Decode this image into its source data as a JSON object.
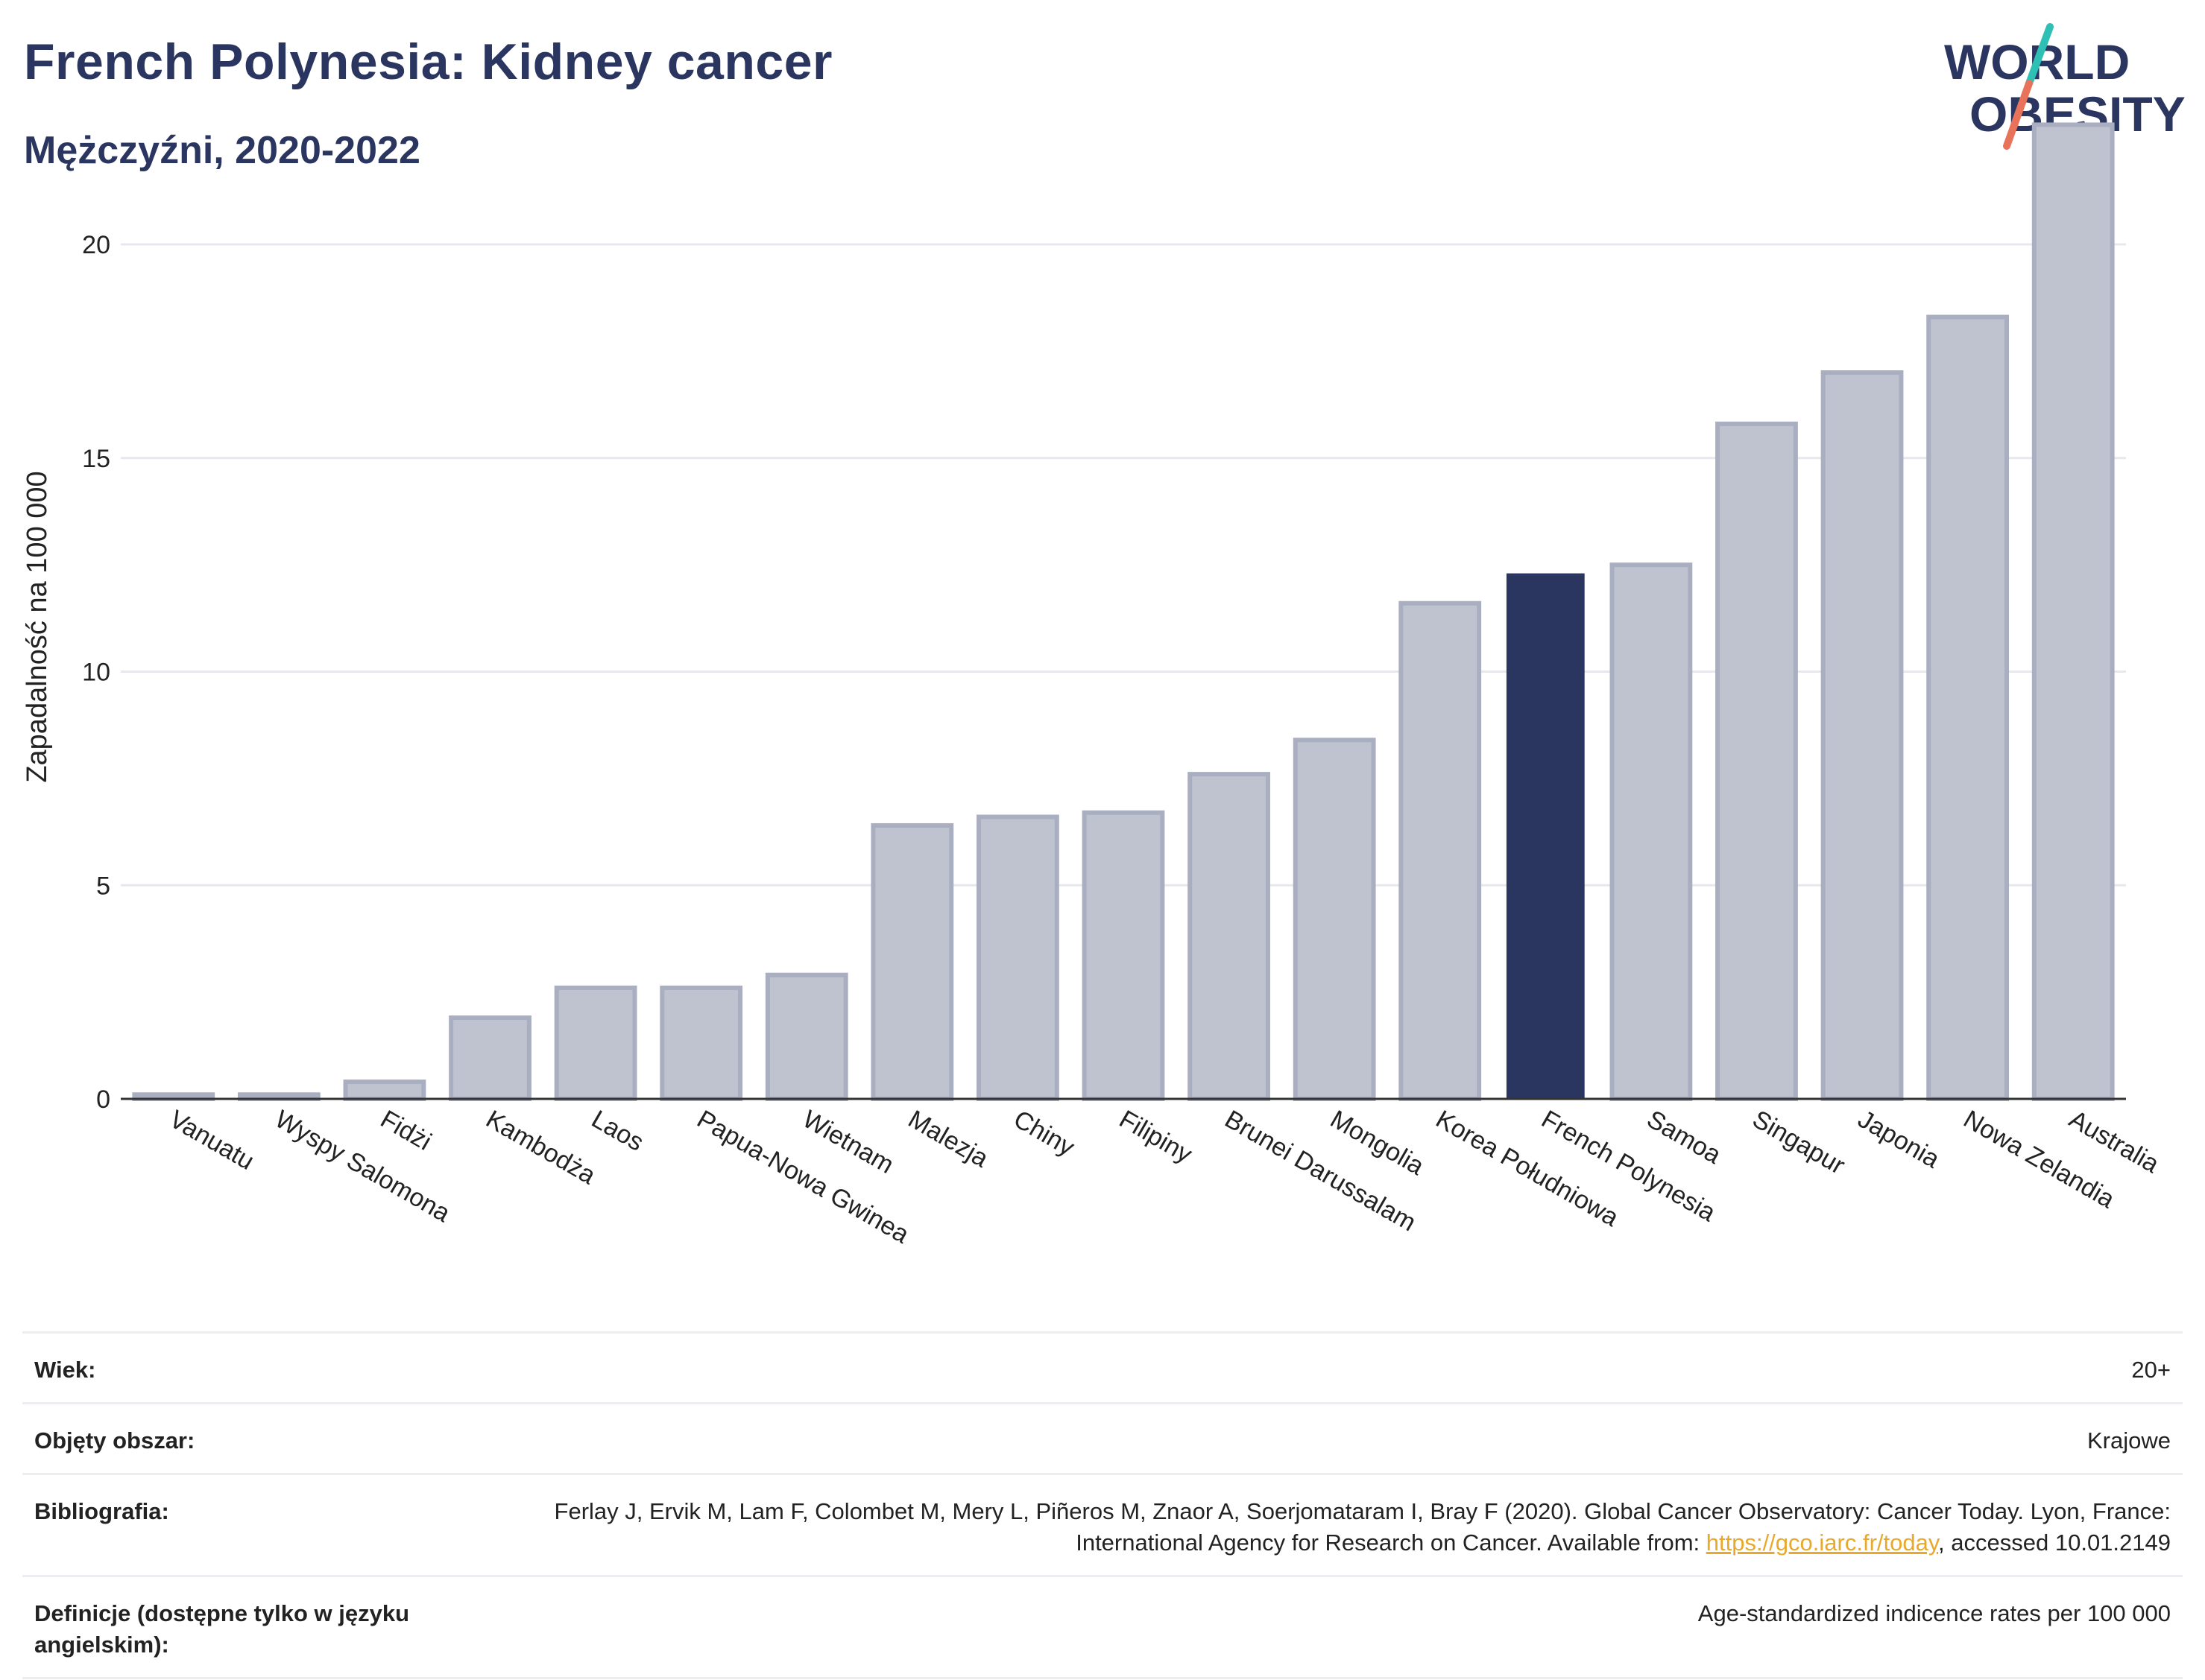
{
  "header": {
    "title": "French Polynesia: Kidney cancer",
    "subtitle": "Mężczyźni, 2020-2022"
  },
  "logo": {
    "line1": "WORLD",
    "line2": "OBESITY",
    "accent_colors": [
      "#2fc0b5",
      "#e8735a"
    ]
  },
  "chart_data": {
    "type": "bar",
    "categories": [
      "Vanuatu",
      "Wyspy Salomona",
      "Fidżi",
      "Kambodża",
      "Laos",
      "Papua-Nowa Gwinea",
      "Wietnam",
      "Malezja",
      "Chiny",
      "Filipiny",
      "Brunei Darussalam",
      "Mongolia",
      "Korea Południowa",
      "French Polynesia",
      "Samoa",
      "Singapur",
      "Japonia",
      "Nowa Zelandia",
      "Australia"
    ],
    "values": [
      0.1,
      0.1,
      0.4,
      1.9,
      2.6,
      2.6,
      2.9,
      6.4,
      6.6,
      6.7,
      7.6,
      8.4,
      11.6,
      12.3,
      12.5,
      15.8,
      17.0,
      18.3,
      22.8
    ],
    "highlight": "French Polynesia",
    "ylabel": "Zapadalność na 100 000",
    "xlabel": "",
    "ylim": [
      0,
      23
    ],
    "yticks": [
      0,
      5,
      10,
      15,
      20
    ],
    "grid": true,
    "colors": {
      "bar": "#bfc3d0",
      "bar_border": "#a9aec0",
      "highlight": "#2a3560"
    }
  },
  "info": {
    "rows": [
      {
        "label": "Wiek:",
        "value": "20+"
      },
      {
        "label": "Objęty obszar:",
        "value": "Krajowe"
      },
      {
        "label": "Bibliografia:",
        "value": "Ferlay J, Ervik M, Lam F, Colombet M, Mery L, Piñeros M, Znaor A, Soerjomataram I, Bray F (2020). Global Cancer Observatory: Cancer Today. Lyon, France: International Agency for Research on Cancer. Available from: ",
        "link": "https://gco.iarc.fr/today",
        "suffix": ", accessed 10.01.2149"
      },
      {
        "label": "Definicje (dostępne tylko w języku angielskim):",
        "value": "Age-standardized indicence rates per 100 000"
      }
    ]
  }
}
